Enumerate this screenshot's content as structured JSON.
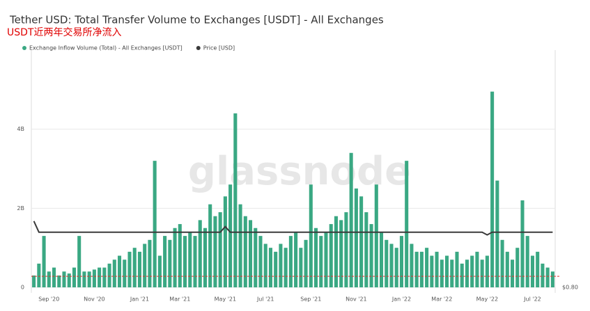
{
  "chart_data": {
    "type": "bar",
    "title": "Tether USD: Total Transfer Volume to Exchanges [USDT] - All Exchanges",
    "annotation": "USDT近两年交易所净流入",
    "watermark": "glassnode",
    "categories": [
      null,
      null,
      null,
      "Sep '20",
      null,
      null,
      null,
      null,
      null,
      null,
      null,
      null,
      "Nov '20",
      null,
      null,
      null,
      null,
      null,
      null,
      null,
      null,
      "Jan '21",
      null,
      null,
      null,
      null,
      null,
      null,
      null,
      "Mar '21",
      null,
      null,
      null,
      null,
      null,
      null,
      null,
      null,
      "May '21",
      null,
      null,
      null,
      null,
      null,
      null,
      null,
      "Jul '21",
      null,
      null,
      null,
      null,
      null,
      null,
      null,
      null,
      "Sep '21",
      null,
      null,
      null,
      null,
      null,
      null,
      null,
      null,
      "Nov '21",
      null,
      null,
      null,
      null,
      null,
      null,
      null,
      null,
      "Jan '22",
      null,
      null,
      null,
      null,
      null,
      null,
      null,
      "Mar '22",
      null,
      null,
      null,
      null,
      null,
      null,
      null,
      null,
      "May '22",
      null,
      null,
      null,
      null,
      null,
      null,
      null,
      null,
      "Jul '22",
      null,
      null,
      null,
      null
    ],
    "series": [
      {
        "name": "Exchange Inflow Volume (Total) - All Exchanges [USDT]",
        "color": "#3aa883",
        "values": [
          0.3,
          0.6,
          1.3,
          0.4,
          0.5,
          0.3,
          0.4,
          0.35,
          0.5,
          1.3,
          0.4,
          0.4,
          0.45,
          0.5,
          0.5,
          0.6,
          0.7,
          0.8,
          0.7,
          0.9,
          1.0,
          0.9,
          1.1,
          1.2,
          3.2,
          0.8,
          1.3,
          1.2,
          1.5,
          1.6,
          1.3,
          1.4,
          1.3,
          1.7,
          1.5,
          2.1,
          1.8,
          1.9,
          2.3,
          2.6,
          4.4,
          2.1,
          1.8,
          1.7,
          1.5,
          1.3,
          1.1,
          1.0,
          0.9,
          1.1,
          1.0,
          1.3,
          1.4,
          1.0,
          1.2,
          2.6,
          1.5,
          1.3,
          1.4,
          1.6,
          1.8,
          1.7,
          1.9,
          3.4,
          2.5,
          2.3,
          1.9,
          1.6,
          2.6,
          1.4,
          1.2,
          1.1,
          1.0,
          1.3,
          3.2,
          1.1,
          0.9,
          0.9,
          1.0,
          0.8,
          0.9,
          0.7,
          0.8,
          0.7,
          0.9,
          0.6,
          0.7,
          0.8,
          0.9,
          0.7,
          0.8,
          4.95,
          2.7,
          1.2,
          0.9,
          0.7,
          1.0,
          2.2,
          1.3,
          0.8,
          0.9,
          0.6,
          0.5,
          0.4
        ]
      },
      {
        "name": "Price [USD]",
        "color": "#3a3a3a",
        "axis": "y2",
        "values": [
          1.04,
          1.0,
          1.0,
          1.0,
          1.0,
          1.0,
          1.0,
          1.0,
          1.0,
          1.0,
          1.0,
          1.0,
          1.0,
          1.0,
          1.0,
          1.0,
          1.0,
          1.0,
          1.0,
          1.0,
          1.0,
          1.0,
          1.0,
          1.0,
          1.0,
          1.0,
          1.0,
          1.0,
          1.0,
          1.0,
          1.0,
          1.0,
          1.0,
          1.0,
          1.0,
          1.0,
          1.0,
          1.0,
          1.02,
          1.0,
          1.0,
          1.0,
          1.0,
          1.0,
          1.0,
          1.0,
          1.0,
          1.0,
          1.0,
          1.0,
          1.0,
          1.0,
          1.0,
          1.0,
          1.0,
          1.0,
          1.0,
          1.0,
          1.0,
          1.0,
          1.0,
          1.0,
          1.0,
          1.0,
          1.0,
          1.0,
          1.0,
          1.0,
          1.0,
          1.0,
          1.0,
          1.0,
          1.0,
          1.0,
          1.0,
          1.0,
          1.0,
          1.0,
          1.0,
          1.0,
          1.0,
          1.0,
          1.0,
          1.0,
          1.0,
          1.0,
          1.0,
          1.0,
          1.0,
          1.0,
          0.99,
          1.0,
          1.0,
          1.0,
          1.0,
          1.0,
          1.0,
          1.0,
          1.0,
          1.0,
          1.0,
          1.0,
          1.0,
          1.0
        ]
      }
    ],
    "ylim": [
      0,
      6
    ],
    "yticks": [
      0,
      {
        "value": 2,
        "label": "2B"
      },
      {
        "value": 4,
        "label": "4B"
      }
    ],
    "y2lim": [
      0.8,
      1.66
    ],
    "y2ticks": [
      {
        "value": 0.8,
        "label": "$0.80"
      }
    ],
    "reference_line": 0.28,
    "reference_color": "#e03030",
    "grid": true
  }
}
